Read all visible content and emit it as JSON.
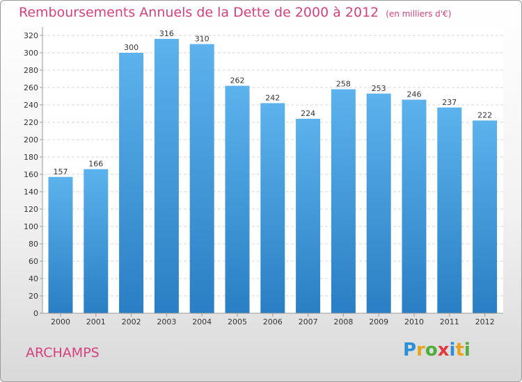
{
  "title": "Remboursements Annuels de la Dette de 2000 à 2012",
  "unit_note": "(en milliers d'€)",
  "commune": "ARCHAMPS",
  "logo": {
    "letters": [
      "P",
      "r",
      "o",
      "x",
      "i",
      "t",
      "i"
    ],
    "colors": [
      "#2a8fd6",
      "#e7a41f",
      "#4fae3b",
      "#e03a3a",
      "#2a8fd6",
      "#e7a41f",
      "#4fae3b"
    ]
  },
  "colors": {
    "bar": "#4ba3e3",
    "bar_dark": "#2a7fc4",
    "text": "#333333",
    "accent": "#d6407e"
  },
  "chart_data": {
    "type": "bar",
    "categories": [
      "2000",
      "2001",
      "2002",
      "2003",
      "2004",
      "2005",
      "2006",
      "2007",
      "2008",
      "2009",
      "2010",
      "2011",
      "2012"
    ],
    "values": [
      157,
      166,
      300,
      316,
      310,
      262,
      242,
      224,
      258,
      253,
      246,
      237,
      222
    ],
    "yticks": [
      0,
      20,
      40,
      60,
      80,
      100,
      120,
      140,
      160,
      180,
      200,
      220,
      240,
      260,
      280,
      300,
      320
    ],
    "ylim": [
      0,
      320
    ],
    "grid": true,
    "data_labels": true
  }
}
